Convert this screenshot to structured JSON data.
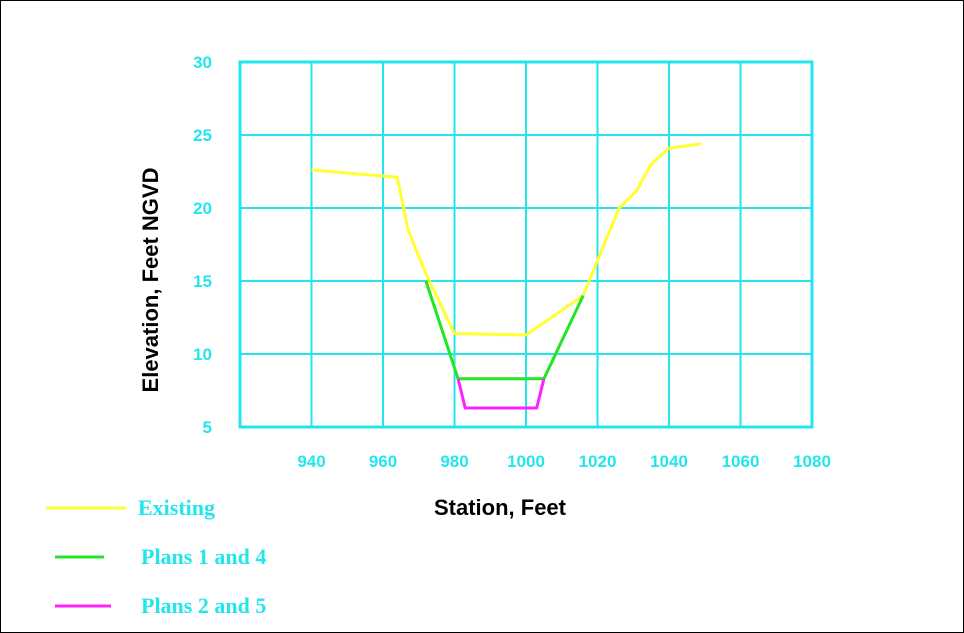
{
  "colors": {
    "axis_text": "#22e6ec",
    "grid": "#22e6ec",
    "background": "#ffffff",
    "frame": "#000000"
  },
  "chart_data": {
    "type": "line",
    "xlabel": "Station, Feet",
    "ylabel": "Elevation, Feet NGVD",
    "xlim": [
      920,
      1080
    ],
    "ylim": [
      5,
      30
    ],
    "xticks": [
      940,
      960,
      980,
      1000,
      1020,
      1040,
      1060,
      1080
    ],
    "yticks": [
      5,
      10,
      15,
      20,
      25,
      30
    ],
    "grid": true,
    "legend_position": "bottom-left",
    "series": [
      {
        "name": "Existing",
        "color": "#ffff33",
        "x": [
          940,
          964,
          967,
          972,
          980,
          1000,
          1016,
          1026,
          1031,
          1035,
          1040,
          1049
        ],
        "y": [
          22.6,
          22.1,
          18.5,
          15.5,
          11.4,
          11.3,
          14.0,
          20.0,
          21.2,
          23.0,
          24.1,
          24.4
        ]
      },
      {
        "name": "Plans 1 and 4",
        "color": "#22e622",
        "x": [
          972,
          981,
          1005,
          1016
        ],
        "y": [
          15.0,
          8.3,
          8.3,
          14.0
        ]
      },
      {
        "name": "Plans 2 and 5",
        "color": "#ff22ff",
        "x": [
          981,
          983,
          1003,
          1005
        ],
        "y": [
          8.3,
          6.3,
          6.3,
          8.3
        ]
      }
    ]
  }
}
